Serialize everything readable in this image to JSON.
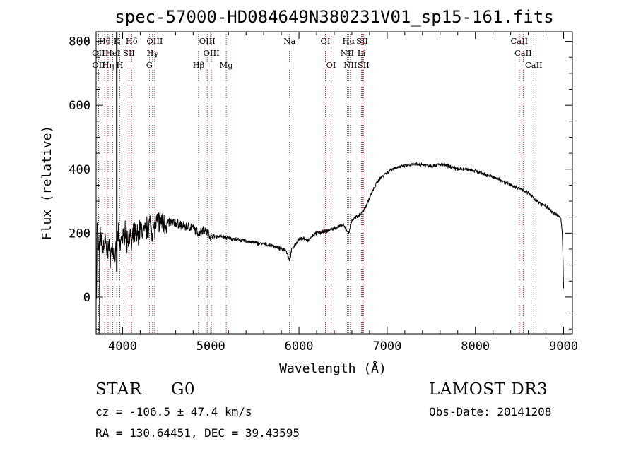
{
  "chart_data": {
    "type": "line",
    "title": "spec-57000-HD084649N380231V01_sp15-161.fits",
    "xlabel": "Wavelength (Å)",
    "ylabel": "Flux (relative)",
    "xlim": [
      3700,
      9100
    ],
    "ylim": [
      -115,
      830
    ],
    "x_ticks": [
      4000,
      5000,
      6000,
      7000,
      8000,
      9000
    ],
    "x_tick_labels": [
      "4000",
      "5000",
      "6000",
      "7000",
      "8000",
      "9000"
    ],
    "y_ticks": [
      0,
      200,
      400,
      600,
      800
    ],
    "y_tick_labels": [
      "0",
      "200",
      "400",
      "600",
      "800"
    ],
    "series": [
      {
        "name": "flux",
        "x": [
          3705,
          3712,
          3718,
          3725,
          3735,
          3745,
          3755,
          3765,
          3780,
          3800,
          3820,
          3840,
          3860,
          3880,
          3900,
          3920,
          3933,
          3950,
          3968,
          3990,
          4010,
          4030,
          4050,
          4080,
          4101,
          4130,
          4160,
          4200,
          4250,
          4300,
          4340,
          4380,
          4420,
          4480,
          4550,
          4620,
          4700,
          4780,
          4861,
          4920,
          5000,
          5100,
          5200,
          5300,
          5400,
          5500,
          5600,
          5700,
          5800,
          5850,
          5893,
          5920,
          5960,
          6000,
          6050,
          6100,
          6150,
          6200,
          6300,
          6400,
          6500,
          6563,
          6600,
          6650,
          6700,
          6750,
          6800,
          6850,
          6900,
          6950,
          7000,
          7050,
          7100,
          7200,
          7300,
          7400,
          7500,
          7600,
          7700,
          7800,
          7900,
          8000,
          8100,
          8200,
          8300,
          8400,
          8498,
          8542,
          8600,
          8662,
          8700,
          8750,
          8800,
          8850,
          8900,
          8940,
          8970,
          8985,
          8995,
          9000
        ],
        "values": [
          10,
          250,
          200,
          160,
          140,
          180,
          190,
          160,
          150,
          180,
          140,
          160,
          130,
          150,
          140,
          120,
          160,
          200,
          150,
          190,
          180,
          220,
          170,
          210,
          160,
          200,
          190,
          215,
          200,
          230,
          210,
          225,
          240,
          230,
          235,
          230,
          220,
          220,
          200,
          215,
          190,
          190,
          185,
          180,
          175,
          170,
          165,
          160,
          150,
          150,
          115,
          150,
          165,
          180,
          185,
          175,
          190,
          200,
          205,
          215,
          225,
          200,
          240,
          250,
          260,
          280,
          310,
          340,
          365,
          380,
          390,
          400,
          405,
          410,
          415,
          415,
          410,
          415,
          410,
          400,
          400,
          395,
          385,
          375,
          365,
          350,
          340,
          335,
          325,
          310,
          300,
          290,
          285,
          270,
          260,
          255,
          245,
          200,
          100,
          30
        ]
      }
    ],
    "line_markers": [
      {
        "label": "Hθ",
        "x": 3798,
        "row": 1
      },
      {
        "label": "K",
        "x": 3934,
        "row": 1
      },
      {
        "label": "Hδ",
        "x": 4102,
        "row": 1
      },
      {
        "label": "OIII",
        "x": 4364,
        "row": 1
      },
      {
        "label": "OIII",
        "x": 4960,
        "row": 1
      },
      {
        "label": "OI",
        "x": 6300,
        "row": 1
      },
      {
        "label": "Hα",
        "x": 6563,
        "row": 1
      },
      {
        "label": "SII",
        "x": 6717,
        "row": 1
      },
      {
        "label": "CaII",
        "x": 8498,
        "row": 1
      },
      {
        "label": "OII",
        "x": 3727,
        "row": 2
      },
      {
        "label": "HeI",
        "x": 3889,
        "row": 2
      },
      {
        "label": "SII",
        "x": 4072,
        "row": 2
      },
      {
        "label": "Hγ",
        "x": 4340,
        "row": 2
      },
      {
        "label": "OIII",
        "x": 5007,
        "row": 2
      },
      {
        "label": "NII",
        "x": 6548,
        "row": 2
      },
      {
        "label": "Li",
        "x": 6708,
        "row": 2
      },
      {
        "label": "CaII",
        "x": 8542,
        "row": 2
      },
      {
        "label": "OII",
        "x": 3729,
        "row": 3
      },
      {
        "label": "Hη",
        "x": 3836,
        "row": 3
      },
      {
        "label": "H",
        "x": 3969,
        "row": 3
      },
      {
        "label": "G",
        "x": 4304,
        "row": 3
      },
      {
        "label": "Hβ",
        "x": 4861,
        "row": 3
      },
      {
        "label": "Mg",
        "x": 5175,
        "row": 3
      },
      {
        "label": "Na",
        "x": 5893,
        "row": 1
      },
      {
        "label": "OI",
        "x": 6364,
        "row": 3
      },
      {
        "label": "NII",
        "x": 6583,
        "row": 3
      },
      {
        "label": "SII",
        "x": 6731,
        "row": 3
      },
      {
        "label": "CaII",
        "x": 8662,
        "row": 3
      }
    ]
  },
  "info": {
    "object_type": "STAR",
    "subclass": "G0",
    "survey": "LAMOST DR3",
    "cz": "cz = -106.5 ± 47.4 km/s",
    "obs_date": "Obs-Date: 20141208",
    "coords": "RA = 130.64451, DEC =  39.43595"
  },
  "colors": {
    "marker_line": "#cc2222",
    "spectrum": "#000000"
  }
}
